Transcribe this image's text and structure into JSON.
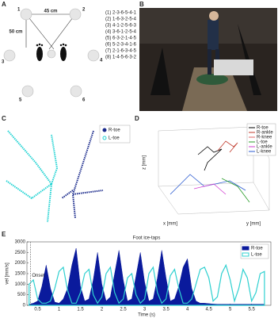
{
  "panels": {
    "labels": [
      "A",
      "B",
      "C",
      "D",
      "E"
    ],
    "a": {
      "points": [
        "1",
        "2",
        "3",
        "4",
        "5",
        "6"
      ],
      "distances": [
        "45 cm",
        "50 cm"
      ],
      "sequences": [
        "(1) 2-3-6-5-4-1",
        "(2) 1-6-3-2-5-4",
        "(3) 4-1-2-5-6-3",
        "(4) 3-6-1-2-5-4",
        "(5) 6-3-2-1-4-5",
        "(6) 5-2-3-4-1-6",
        "(7) 2-1-6-3-4-5",
        "(8) 1-4-5-6-3-2"
      ]
    },
    "c": {
      "legend": [
        {
          "name": "R-toe",
          "color": "#1a2a8c"
        },
        {
          "name": "L-toe",
          "color": "#22d3d3"
        }
      ]
    },
    "d": {
      "legend": [
        {
          "name": "R-toe",
          "color": "#000000"
        },
        {
          "name": "R-ankle",
          "color": "#c0392b"
        },
        {
          "name": "R-knee",
          "color": "#e06666"
        },
        {
          "name": "L-toe",
          "color": "#2a9d2a"
        },
        {
          "name": "L-ankle",
          "color": "#d13fd1"
        },
        {
          "name": "L-knee",
          "color": "#2a5ad1"
        }
      ],
      "axes": [
        "z [mm]",
        "x [mm]",
        "y [mm]"
      ]
    }
  },
  "chart_data": {
    "type": "area",
    "title": "Foot ice-taps",
    "xlabel": "Time (s)",
    "ylabel": "vel [mm/s]",
    "annotation": {
      "text": "Onset",
      "x": 0.33
    },
    "x": [
      0.3,
      0.4,
      0.5,
      0.6,
      0.7,
      0.8,
      0.9,
      1.0,
      1.1,
      1.2,
      1.3,
      1.4,
      1.5,
      1.6,
      1.7,
      1.8,
      1.9,
      2.0,
      2.1,
      2.2,
      2.3,
      2.4,
      2.5,
      2.6,
      2.7,
      2.8,
      2.9,
      3.0,
      3.1,
      3.2,
      3.3,
      3.4,
      3.5,
      3.6,
      3.7,
      3.8,
      3.9,
      4.0,
      4.1,
      4.2,
      4.3,
      4.4,
      4.5,
      4.6,
      4.7,
      4.8,
      4.9,
      5.0,
      5.1,
      5.2,
      5.3,
      5.4,
      5.5,
      5.6,
      5.7,
      5.8
    ],
    "series": [
      {
        "name": "R-toe",
        "color": "#0a1a9c",
        "values": [
          50,
          100,
          200,
          900,
          1900,
          800,
          150,
          100,
          300,
          800,
          1900,
          2700,
          900,
          200,
          300,
          1200,
          2500,
          1000,
          200,
          400,
          1500,
          2600,
          1200,
          200,
          300,
          1400,
          2500,
          1100,
          200,
          300,
          1300,
          2600,
          1300,
          200,
          300,
          900,
          1800,
          2200,
          800,
          200,
          100,
          100,
          80,
          60,
          50,
          50,
          50,
          50,
          50,
          50,
          50,
          50,
          50,
          50,
          50,
          50
        ]
      },
      {
        "name": "L-toe",
        "color": "#2fd0d0",
        "values": [
          1000,
          1200,
          300,
          100,
          100,
          200,
          800,
          1600,
          1800,
          700,
          100,
          100,
          600,
          1500,
          1700,
          500,
          100,
          400,
          1500,
          1800,
          600,
          100,
          300,
          1300,
          1500,
          500,
          100,
          300,
          1500,
          1800,
          600,
          100,
          300,
          1400,
          1700,
          800,
          100,
          100,
          300,
          1000,
          1700,
          1800,
          1300,
          200,
          400,
          1500,
          1900,
          1200,
          200,
          800,
          1700,
          1300,
          200,
          600,
          1500,
          1600
        ]
      }
    ],
    "xlim": [
      0.25,
      5.95
    ],
    "ylim": [
      0,
      3000
    ],
    "xticks": [
      0.5,
      1,
      1.5,
      2,
      2.5,
      3,
      3.5,
      4,
      4.5,
      5,
      5.5
    ],
    "yticks": [
      0,
      500,
      1000,
      1500,
      2000,
      2500,
      3000
    ],
    "legend": "upper right"
  }
}
